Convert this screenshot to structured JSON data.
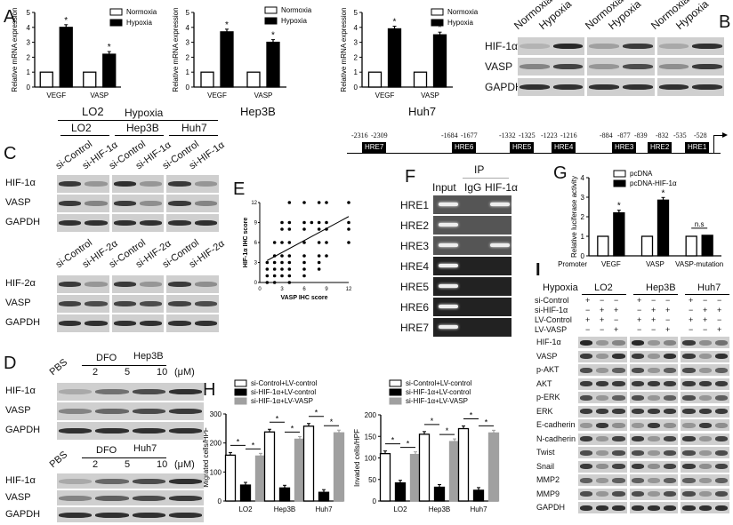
{
  "panel_labels": {
    "A": "A",
    "B": "B",
    "C": "C",
    "D": "D",
    "E": "E",
    "F": "F",
    "G": "G",
    "H": "H",
    "I": "I"
  },
  "chart_data": [
    {
      "id": "A1",
      "type": "bar",
      "title": "LO2",
      "ylabel": "Relative mRNA expression",
      "ylim": [
        0,
        5
      ],
      "yticks": [
        "0",
        "1",
        "2",
        "3",
        "4",
        "5"
      ],
      "categories": [
        "VEGF",
        "VASP"
      ],
      "series": [
        {
          "name": "Normoxia",
          "color": "#ffffff",
          "values": [
            1,
            1
          ]
        },
        {
          "name": "Hypoxia",
          "color": "#000000",
          "values": [
            4.0,
            2.2
          ]
        }
      ],
      "significance": [
        "*",
        "*"
      ]
    },
    {
      "id": "A2",
      "type": "bar",
      "title": "Hep3B",
      "ylabel": "Relative mRNA expression",
      "ylim": [
        0,
        5
      ],
      "yticks": [
        "0",
        "1",
        "2",
        "3",
        "4",
        "5"
      ],
      "categories": [
        "VEGF",
        "VASP"
      ],
      "series": [
        {
          "name": "Normoxia",
          "color": "#ffffff",
          "values": [
            1,
            1
          ]
        },
        {
          "name": "Hypoxia",
          "color": "#000000",
          "values": [
            3.7,
            3.0
          ]
        }
      ],
      "significance": [
        "*",
        "*"
      ]
    },
    {
      "id": "A3",
      "type": "bar",
      "title": "Huh7",
      "ylabel": "Relative mRNA expression",
      "ylim": [
        0,
        5
      ],
      "yticks": [
        "0",
        "1",
        "2",
        "3",
        "4",
        "5"
      ],
      "categories": [
        "VEGF",
        "VASP"
      ],
      "series": [
        {
          "name": "Normoxia",
          "color": "#ffffff",
          "values": [
            1,
            1
          ]
        },
        {
          "name": "Hypoxia",
          "color": "#000000",
          "values": [
            3.9,
            3.5
          ]
        }
      ],
      "significance": [
        "*",
        "*"
      ]
    },
    {
      "id": "E",
      "type": "scatter",
      "xlabel": "VASP IHC score",
      "ylabel": "HIF-1α IHC score",
      "xlim": [
        0,
        12
      ],
      "ylim": [
        0,
        12
      ],
      "xticks": [
        "0",
        "3",
        "6",
        "9",
        "12"
      ],
      "yticks": [
        "0",
        "3",
        "6",
        "9",
        "12"
      ],
      "points": [
        [
          1,
          0
        ],
        [
          1,
          1
        ],
        [
          1,
          2
        ],
        [
          1,
          3
        ],
        [
          2,
          0
        ],
        [
          2,
          1
        ],
        [
          2,
          2
        ],
        [
          2,
          3
        ],
        [
          2,
          4
        ],
        [
          2,
          6
        ],
        [
          3,
          1
        ],
        [
          3,
          2
        ],
        [
          3,
          3
        ],
        [
          3,
          4
        ],
        [
          3,
          6
        ],
        [
          3,
          8
        ],
        [
          3,
          9
        ],
        [
          4,
          0
        ],
        [
          4,
          1
        ],
        [
          4,
          2
        ],
        [
          4,
          3
        ],
        [
          4,
          4
        ],
        [
          4,
          6
        ],
        [
          4,
          8
        ],
        [
          4,
          9
        ],
        [
          4,
          12
        ],
        [
          6,
          1
        ],
        [
          6,
          2
        ],
        [
          6,
          3
        ],
        [
          6,
          4
        ],
        [
          6,
          6
        ],
        [
          6,
          8
        ],
        [
          6,
          9
        ],
        [
          6,
          12
        ],
        [
          7,
          9
        ],
        [
          8,
          2
        ],
        [
          8,
          3
        ],
        [
          8,
          4
        ],
        [
          8,
          6
        ],
        [
          8,
          8
        ],
        [
          8,
          9
        ],
        [
          8,
          12
        ],
        [
          9,
          4
        ],
        [
          9,
          6
        ],
        [
          9,
          8
        ],
        [
          9,
          9
        ],
        [
          9,
          12
        ],
        [
          12,
          6
        ],
        [
          12,
          8
        ],
        [
          12,
          9
        ],
        [
          12,
          12
        ]
      ],
      "fit": [
        [
          1,
          3.3
        ],
        [
          12,
          9.9
        ]
      ]
    },
    {
      "id": "G",
      "type": "bar",
      "ylabel": "Relative luciferase activity",
      "ylim": [
        0,
        4
      ],
      "yticks": [
        "0",
        "1",
        "2",
        "3",
        "4"
      ],
      "xprefix": "Promoter",
      "categories": [
        "VEGF",
        "VASP",
        "VASP-mutation"
      ],
      "series": [
        {
          "name": "pcDNA",
          "color": "#ffffff",
          "values": [
            1,
            1,
            1
          ]
        },
        {
          "name": "pcDNA-HIF-1α",
          "color": "#000000",
          "values": [
            2.2,
            2.85,
            1.05
          ]
        }
      ],
      "significance": [
        "*",
        "*",
        "n.s"
      ]
    },
    {
      "id": "H1",
      "type": "bar",
      "ylabel": "Migrated cells/HPF",
      "ylim": [
        0,
        300
      ],
      "yticks": [
        "0",
        "100",
        "200",
        "300"
      ],
      "categories": [
        "LO2",
        "Hep3B",
        "Huh7"
      ],
      "series": [
        {
          "name": "si-Control+LV-control",
          "color": "#ffffff",
          "values": [
            158,
            238,
            258
          ]
        },
        {
          "name": "si-HIF-1α+LV-control",
          "color": "#000000",
          "values": [
            55,
            45,
            30
          ]
        },
        {
          "name": "si-HIF-1α+LV-VASP",
          "color": "#a0a0a0",
          "values": [
            155,
            213,
            235
          ]
        }
      ],
      "significance": [
        "*",
        "*"
      ]
    },
    {
      "id": "H2",
      "type": "bar",
      "ylabel": "Invaded cells/HPF",
      "ylim": [
        0,
        200
      ],
      "yticks": [
        "0",
        "50",
        "100",
        "150",
        "200"
      ],
      "categories": [
        "LO2",
        "Hep3B",
        "Huh7"
      ],
      "series": [
        {
          "name": "si-Control+LV-control",
          "color": "#ffffff",
          "values": [
            110,
            155,
            168
          ]
        },
        {
          "name": "si-HIF-1α+LV-control",
          "color": "#000000",
          "values": [
            42,
            32,
            25
          ]
        },
        {
          "name": "si-HIF-1α+LV-VASP",
          "color": "#a0a0a0",
          "values": [
            108,
            138,
            158
          ]
        }
      ],
      "significance": [
        "*",
        "*"
      ]
    }
  ],
  "panelB": {
    "conditions": [
      "Normoxia",
      "Hypoxia",
      "Normoxia",
      "Hypoxia",
      "Normoxia",
      "Hypoxia"
    ],
    "rows": [
      {
        "label": "HIF-1α",
        "bands": [
          0.15,
          0.9,
          0.25,
          0.8,
          0.2,
          0.85
        ]
      },
      {
        "label": "VASP",
        "bands": [
          0.4,
          0.75,
          0.3,
          0.7,
          0.35,
          0.8
        ]
      },
      {
        "label": "GAPDH",
        "bands": [
          0.85,
          0.85,
          0.85,
          0.85,
          0.85,
          0.85
        ]
      }
    ]
  },
  "panelC": {
    "header": "Hypoxia",
    "cell_lines": [
      "LO2",
      "Hep3B",
      "Huh7"
    ],
    "top": {
      "lanes": [
        "si-Control",
        "si-HIF-1α",
        "si-Control",
        "si-HIF-1α",
        "si-Control",
        "si-HIF-1α"
      ],
      "rows": [
        {
          "label": "HIF-1α",
          "bands": [
            0.8,
            0.3,
            0.85,
            0.3,
            0.8,
            0.3
          ]
        },
        {
          "label": "VASP",
          "bands": [
            0.8,
            0.4,
            0.8,
            0.35,
            0.8,
            0.4
          ]
        },
        {
          "label": "GAPDH",
          "bands": [
            0.85,
            0.85,
            0.85,
            0.85,
            0.85,
            0.85
          ]
        }
      ]
    },
    "bottom": {
      "lanes": [
        "si-Control",
        "si-HIF-2α",
        "si-Control",
        "si-HIF-2α",
        "si-Control",
        "si-HIF-2α"
      ],
      "rows": [
        {
          "label": "HIF-2α",
          "bands": [
            0.8,
            0.3,
            0.8,
            0.3,
            0.8,
            0.35
          ]
        },
        {
          "label": "VASP",
          "bands": [
            0.75,
            0.7,
            0.75,
            0.7,
            0.75,
            0.7
          ]
        },
        {
          "label": "GAPDH",
          "bands": [
            0.85,
            0.85,
            0.85,
            0.85,
            0.85,
            0.85
          ]
        }
      ]
    }
  },
  "panelD": {
    "blocks": [
      {
        "pbs": "PBS",
        "dfo": "DFO",
        "cell": "Hep3B",
        "doses": [
          "2",
          "5",
          "10"
        ],
        "unit": "(μM)",
        "rows": [
          {
            "label": "HIF-1α",
            "bands": [
              0.2,
              0.5,
              0.7,
              0.85
            ]
          },
          {
            "label": "VASP",
            "bands": [
              0.4,
              0.55,
              0.7,
              0.8
            ]
          },
          {
            "label": "GAPDH",
            "bands": [
              0.85,
              0.85,
              0.85,
              0.85
            ]
          }
        ]
      },
      {
        "pbs": "PBS",
        "dfo": "DFO",
        "cell": "Huh7",
        "doses": [
          "2",
          "5",
          "10"
        ],
        "unit": "(μM)",
        "rows": [
          {
            "label": "HIF-1α",
            "bands": [
              0.2,
              0.55,
              0.7,
              0.85
            ]
          },
          {
            "label": "VASP",
            "bands": [
              0.4,
              0.6,
              0.7,
              0.8
            ]
          },
          {
            "label": "GAPDH",
            "bands": [
              0.85,
              0.85,
              0.85,
              0.85
            ]
          }
        ]
      }
    ]
  },
  "promoter": {
    "elements": [
      {
        "name": "HRE7",
        "start": "-2316",
        "end": "-2309"
      },
      {
        "name": "HRE6",
        "start": "-1684",
        "end": "-1677"
      },
      {
        "name": "HRE5",
        "start": "-1332",
        "end": "-1325"
      },
      {
        "name": "HRE4",
        "start": "-1223",
        "end": "-1216"
      },
      {
        "name": "HRE3",
        "start": "-884",
        "end": "-877"
      },
      {
        "name": "HRE2",
        "start": "-839",
        "end": "-832"
      },
      {
        "name": "HRE1",
        "start": "-535",
        "end": "-528"
      }
    ]
  },
  "panelF": {
    "ip": "IP",
    "columns": [
      "Input",
      "IgG",
      "HIF-1α"
    ],
    "rows": [
      {
        "label": "HRE1",
        "bands": [
          1,
          0,
          1
        ]
      },
      {
        "label": "HRE2",
        "bands": [
          1,
          0,
          0
        ]
      },
      {
        "label": "HRE3",
        "bands": [
          1,
          0,
          1
        ]
      },
      {
        "label": "HRE4",
        "bands": [
          1,
          0,
          0
        ]
      },
      {
        "label": "HRE5",
        "bands": [
          1,
          0,
          0
        ]
      },
      {
        "label": "HRE6",
        "bands": [
          1,
          0,
          0
        ]
      },
      {
        "label": "HRE7",
        "bands": [
          1,
          0,
          0
        ]
      }
    ]
  },
  "panelI": {
    "header": "Hypoxia",
    "cell_lines": [
      "LO2",
      "Hep3B",
      "Huh7"
    ],
    "treatments": [
      {
        "label": "si-Control",
        "signs": [
          "+",
          "−",
          "−",
          "+",
          "−",
          "−",
          "+",
          "−",
          "−"
        ]
      },
      {
        "label": "si-HIF-1α",
        "signs": [
          "−",
          "+",
          "+",
          "−",
          "+",
          "+",
          "−",
          "+",
          "+"
        ]
      },
      {
        "label": "LV-Control",
        "signs": [
          "+",
          "+",
          "−",
          "+",
          "+",
          "−",
          "+",
          "+",
          "−"
        ]
      },
      {
        "label": "LV-VASP",
        "signs": [
          "−",
          "−",
          "+",
          "−",
          "−",
          "+",
          "−",
          "−",
          "+"
        ]
      }
    ],
    "rows": [
      {
        "label": "HIF-1α",
        "bands": [
          0.9,
          0.3,
          0.4,
          0.9,
          0.3,
          0.4,
          0.8,
          0.35,
          0.5
        ]
      },
      {
        "label": "VASP",
        "bands": [
          0.8,
          0.3,
          0.85,
          0.8,
          0.3,
          0.85,
          0.8,
          0.3,
          0.85
        ]
      },
      {
        "label": "p-AKT",
        "bands": [
          0.7,
          0.3,
          0.6,
          0.7,
          0.3,
          0.6,
          0.7,
          0.3,
          0.6
        ]
      },
      {
        "label": "AKT",
        "bands": [
          0.8,
          0.8,
          0.8,
          0.8,
          0.8,
          0.8,
          0.8,
          0.8,
          0.8
        ]
      },
      {
        "label": "p-ERK",
        "bands": [
          0.7,
          0.3,
          0.6,
          0.7,
          0.3,
          0.6,
          0.7,
          0.3,
          0.6
        ]
      },
      {
        "label": "ERK",
        "bands": [
          0.8,
          0.8,
          0.8,
          0.8,
          0.8,
          0.8,
          0.8,
          0.8,
          0.8
        ]
      },
      {
        "label": "E-cadherin",
        "bands": [
          0.3,
          0.8,
          0.35,
          0.3,
          0.8,
          0.35,
          0.3,
          0.8,
          0.35
        ]
      },
      {
        "label": "N-cadherin",
        "bands": [
          0.8,
          0.3,
          0.75,
          0.8,
          0.3,
          0.75,
          0.8,
          0.3,
          0.75
        ]
      },
      {
        "label": "Twist",
        "bands": [
          0.7,
          0.3,
          0.7,
          0.7,
          0.3,
          0.7,
          0.7,
          0.3,
          0.7
        ]
      },
      {
        "label": "Snail",
        "bands": [
          0.8,
          0.35,
          0.75,
          0.8,
          0.35,
          0.75,
          0.8,
          0.35,
          0.75
        ]
      },
      {
        "label": "MMP2",
        "bands": [
          0.6,
          0.3,
          0.6,
          0.6,
          0.3,
          0.6,
          0.6,
          0.3,
          0.6
        ]
      },
      {
        "label": "MMP9",
        "bands": [
          0.7,
          0.3,
          0.7,
          0.7,
          0.3,
          0.7,
          0.7,
          0.3,
          0.7
        ]
      },
      {
        "label": "GAPDH",
        "bands": [
          0.85,
          0.85,
          0.85,
          0.85,
          0.85,
          0.85,
          0.85,
          0.85,
          0.85
        ]
      }
    ]
  }
}
